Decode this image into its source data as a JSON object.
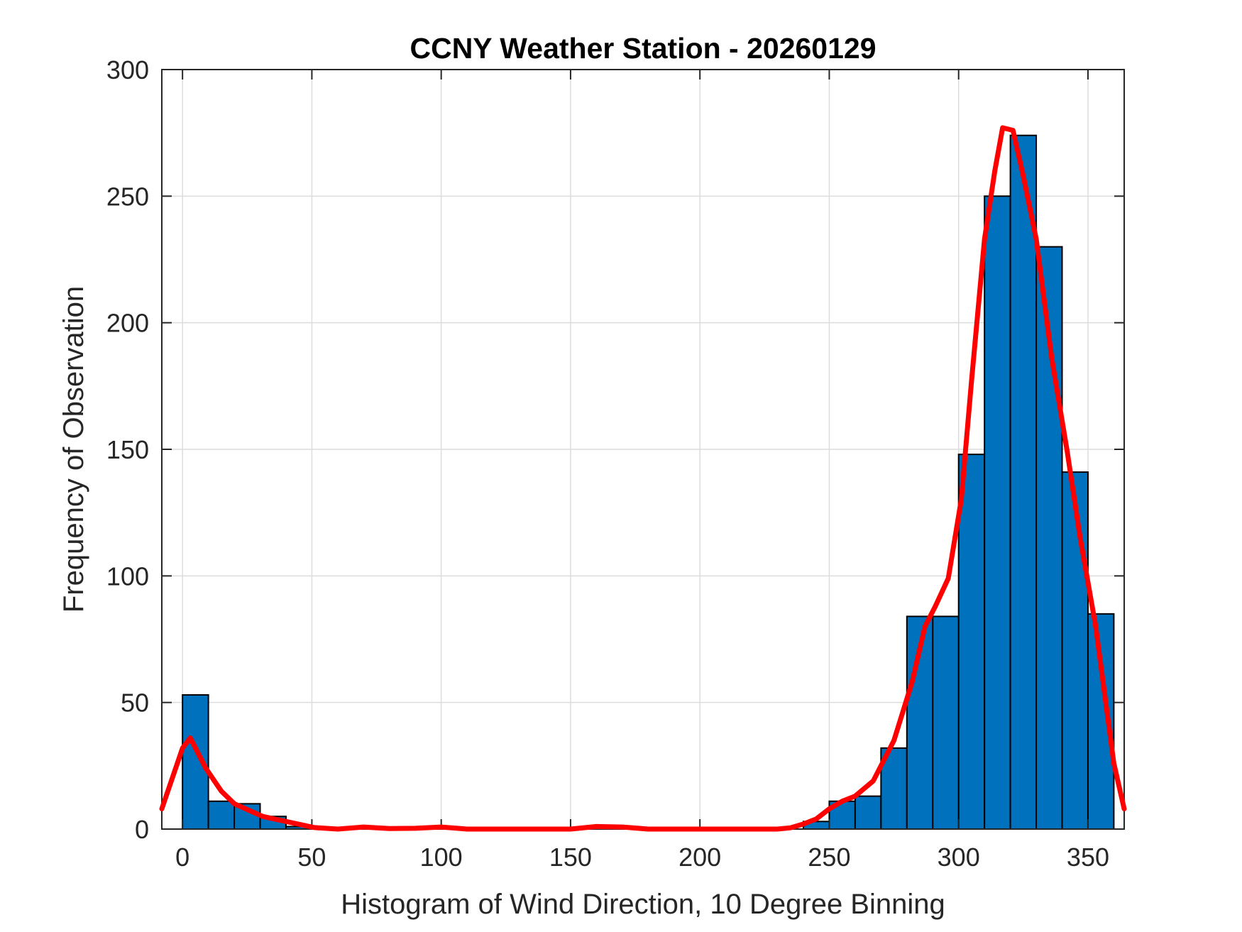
{
  "chart_data": {
    "type": "bar",
    "title": "CCNY Weather Station - 20260129",
    "xlabel": "Histogram of Wind Direction, 10 Degree Binning",
    "ylabel": "Frequency of Observation",
    "xlim": [
      -8,
      364
    ],
    "ylim": [
      0,
      300
    ],
    "grid": true,
    "xticks": [
      0,
      50,
      100,
      150,
      200,
      250,
      300,
      350
    ],
    "yticks": [
      0,
      50,
      100,
      150,
      200,
      250,
      300
    ],
    "xtick_labels": [
      "0",
      "50",
      "100",
      "150",
      "200",
      "250",
      "300",
      "350"
    ],
    "ytick_labels": [
      "0",
      "50",
      "100",
      "150",
      "200",
      "250",
      "300"
    ],
    "bin_width": 10,
    "bin_edges_start": [
      0,
      10,
      20,
      30,
      40,
      50,
      60,
      70,
      80,
      90,
      100,
      110,
      120,
      130,
      140,
      150,
      160,
      170,
      180,
      190,
      200,
      210,
      220,
      230,
      240,
      250,
      260,
      270,
      280,
      290,
      300,
      310,
      320,
      330,
      340,
      350
    ],
    "values": [
      53,
      11,
      10,
      5,
      1,
      0,
      0,
      0,
      0,
      0,
      0,
      0,
      0,
      0,
      0,
      0,
      0,
      0,
      0,
      0,
      0,
      0,
      0,
      0,
      3,
      11,
      13,
      32,
      84,
      84,
      148,
      250,
      274,
      230,
      141,
      85
    ],
    "bar_color": "#0072BD",
    "curve": {
      "name": "density fit",
      "color": "#FF0000",
      "x": [
        -8,
        0,
        3,
        9,
        15,
        20,
        31,
        40,
        51,
        60,
        70,
        80,
        90,
        100,
        110,
        150,
        160,
        170,
        180,
        230,
        235,
        240,
        245,
        250,
        255,
        260,
        267,
        275,
        282,
        287,
        291,
        296,
        301,
        305,
        310,
        314,
        317,
        321,
        325,
        330,
        336,
        342,
        347,
        353,
        357,
        360,
        364
      ],
      "y": [
        8,
        32,
        36,
        24,
        15,
        10,
        5,
        3,
        0.6,
        0,
        0.8,
        0.2,
        0.3,
        0.8,
        0,
        0,
        1,
        0.8,
        0,
        0,
        0.5,
        2,
        4,
        8,
        11,
        13,
        19,
        35,
        58,
        80,
        88,
        99,
        130,
        177,
        233,
        260,
        277,
        276,
        258,
        233,
        186,
        149,
        115,
        80,
        49,
        26,
        8
      ]
    }
  }
}
